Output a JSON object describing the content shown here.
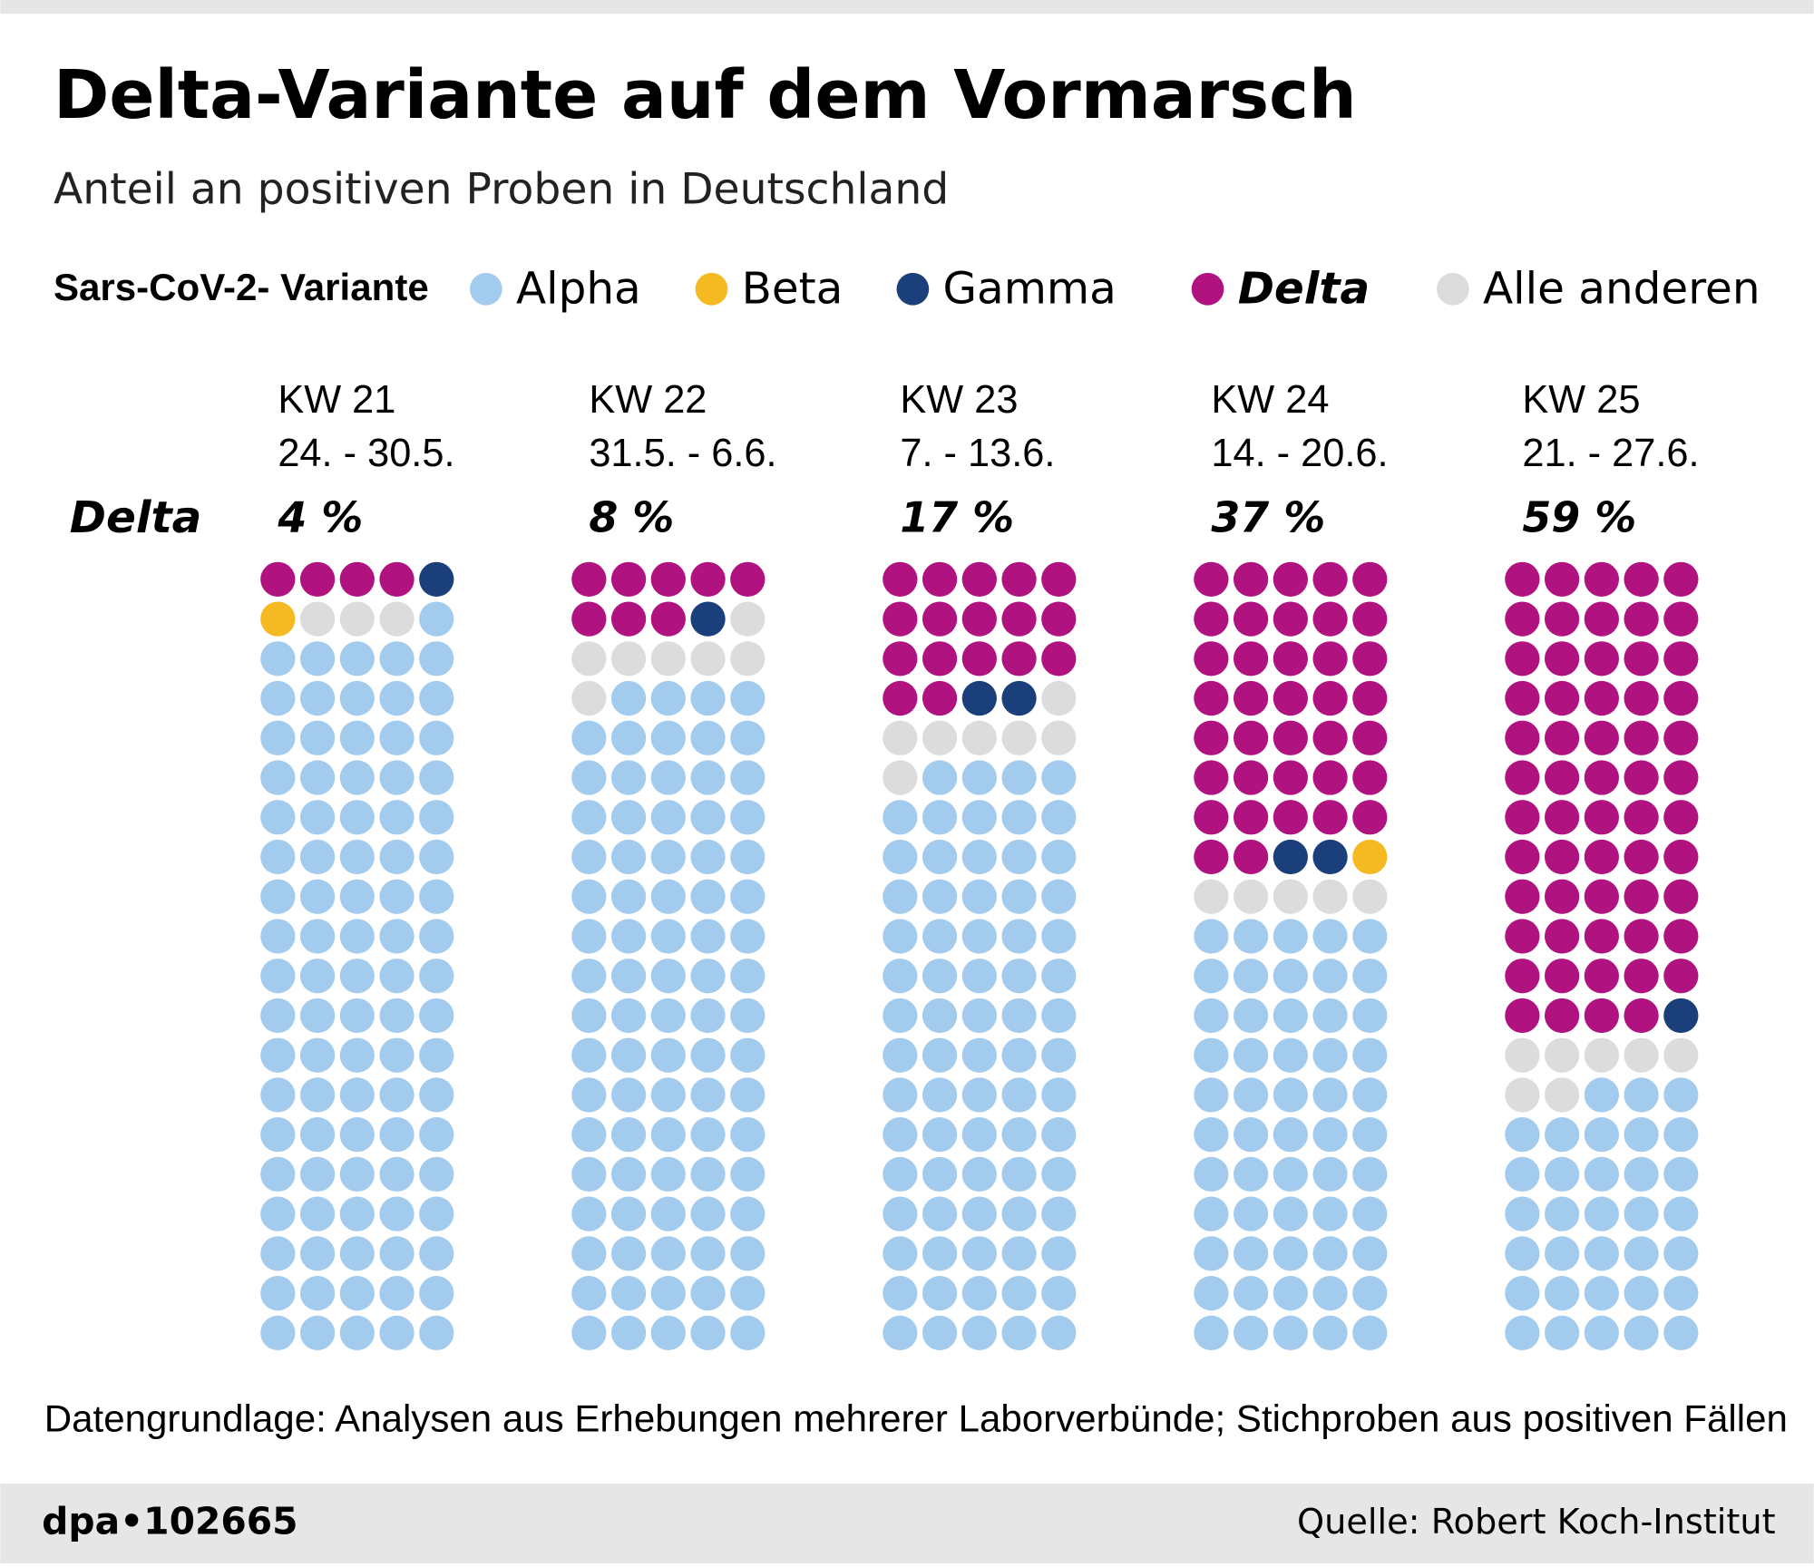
{
  "chart_data": {
    "type": "waffle",
    "title": "Delta-Variante auf dem Vormarsch",
    "subtitle": "Anteil an positiven Proben in Deutschland",
    "legend_title": "Sars-CoV-2- Variante",
    "categories": [
      "KW 21",
      "KW 22",
      "KW 23",
      "KW 24",
      "KW 25"
    ],
    "periods": [
      "24. - 30.5.",
      "31.5. - 6.6.",
      "7. - 13.6.",
      "14. - 20.6.",
      "21. - 27.6."
    ],
    "highlight_label": "Delta",
    "series": [
      {
        "name": "Alpha",
        "color": "#a3cbee",
        "values": [
          91,
          84,
          74,
          55,
          33
        ]
      },
      {
        "name": "Beta",
        "color": "#f5b921",
        "values": [
          1,
          0,
          0,
          1,
          0
        ]
      },
      {
        "name": "Gamma",
        "color": "#1b3f7a",
        "values": [
          1,
          1,
          2,
          2,
          1
        ]
      },
      {
        "name": "Delta",
        "color": "#b0137f",
        "values": [
          4,
          8,
          17,
          37,
          59
        ],
        "value_labels": [
          "4 %",
          "8 %",
          "17 %",
          "37 %",
          "59 %"
        ]
      },
      {
        "name": "Alle anderen",
        "color": "#dcdcdc",
        "values": [
          3,
          7,
          7,
          5,
          7
        ]
      }
    ],
    "note": "Datengrundlage: Analysen aus Erhebungen mehrerer Laborverbünde; Stichproben aus positiven Fällen",
    "credit": "dpa•102665",
    "source": "Quelle: Robert Koch-Institut"
  }
}
